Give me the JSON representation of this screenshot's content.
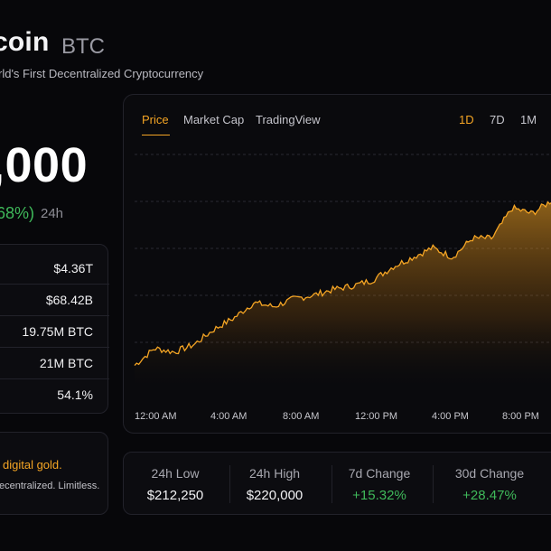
{
  "header": {
    "title": "coin",
    "ticker": "BTC",
    "subtitle": "rld's First Decentralized Cryptocurrency"
  },
  "price": {
    "value": ",000",
    "change": "68%)",
    "period": "24h"
  },
  "stats": [
    "$4.36T",
    "$68.42B",
    "19.75M BTC",
    "21M BTC",
    "54.1%"
  ],
  "about": {
    "headline": "digital gold.",
    "text": "ecentralized. Limitless."
  },
  "chart": {
    "tabs": [
      "Price",
      "Market Cap",
      "TradingView"
    ],
    "active_tab": "Price",
    "ranges": [
      "1D",
      "7D",
      "1M"
    ],
    "active_range": "1D",
    "x_ticks": [
      "12:00 AM",
      "4:00 AM",
      "8:00 AM",
      "12:00 PM",
      "4:00 PM",
      "8:00 PM"
    ],
    "accent": "#f5a524"
  },
  "chart_data": {
    "type": "area",
    "x": [
      "12:00 AM",
      "1:00 AM",
      "2:00 AM",
      "3:00 AM",
      "4:00 AM",
      "5:00 AM",
      "6:00 AM",
      "7:00 AM",
      "8:00 AM",
      "9:00 AM",
      "10:00 AM",
      "11:00 AM",
      "12:00 PM",
      "1:00 PM",
      "2:00 PM",
      "3:00 PM",
      "4:00 PM",
      "5:00 PM",
      "6:00 PM",
      "7:00 PM",
      "8:00 PM",
      "9:00 PM"
    ],
    "series": [
      {
        "values": [
          0.05,
          0.14,
          0.12,
          0.16,
          0.24,
          0.3,
          0.38,
          0.36,
          0.4,
          0.42,
          0.45,
          0.47,
          0.5,
          0.57,
          0.62,
          0.67,
          0.62,
          0.72,
          0.72,
          0.88,
          0.85,
          0.92
        ]
      }
    ],
    "y_scale": "normalized 0-1 (no y-axis labels shown)",
    "grid": true
  },
  "summary": [
    {
      "label": "24h Low",
      "value": "$212,250",
      "positive": false
    },
    {
      "label": "24h High",
      "value": "$220,000",
      "positive": false
    },
    {
      "label": "7d Change",
      "value": "+15.32%",
      "positive": true
    },
    {
      "label": "30d Change",
      "value": "+28.47%",
      "positive": true
    }
  ]
}
